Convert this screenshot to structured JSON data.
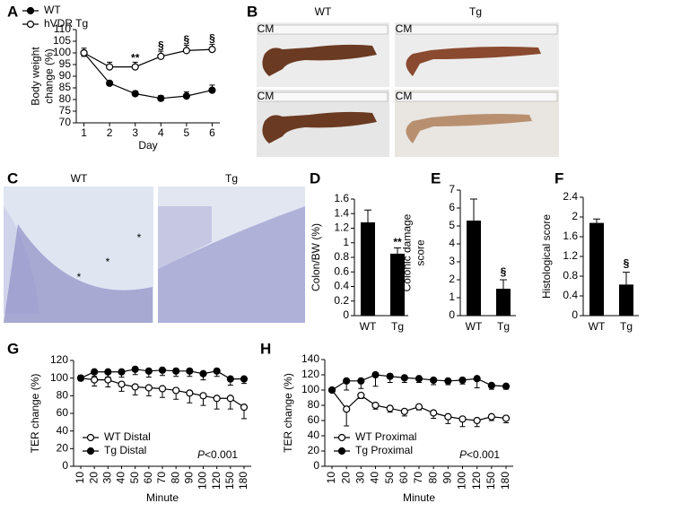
{
  "chart_data": [
    {
      "type": "line",
      "panel": "A",
      "x": [
        1,
        2,
        3,
        4,
        5,
        6
      ],
      "xlim": [
        0.7,
        6.3
      ],
      "xticks": [
        1,
        2,
        3,
        4,
        5,
        6
      ],
      "ylim": [
        70,
        110
      ],
      "yticks": [
        70,
        75,
        80,
        85,
        90,
        95,
        100,
        105,
        110
      ],
      "ylabel": [
        "Body weight",
        "change (%)"
      ],
      "xlabel": "Day",
      "legend": "upper left",
      "series": [
        {
          "name": "WT",
          "color": "#000000",
          "fill": "#000000",
          "values": [
            100,
            87,
            82.5,
            80.5,
            81.5,
            84
          ],
          "errors": [
            1.5,
            0.8,
            1.2,
            1.2,
            1.8,
            2.2
          ]
        },
        {
          "name": "hVDR Tg",
          "color": "#000000",
          "fill": "#ffffff",
          "values": [
            100,
            94,
            94,
            98.5,
            101,
            101.5
          ],
          "errors": [
            2,
            2,
            2,
            2.2,
            2.2,
            2.2
          ]
        }
      ],
      "annotations": [
        {
          "text": "**",
          "x": 3,
          "y": 97.5
        },
        {
          "text": "§",
          "x": 4,
          "y": 103
        },
        {
          "text": "§",
          "x": 5,
          "y": 105.5
        },
        {
          "text": "§",
          "x": 6,
          "y": 106
        }
      ]
    },
    {
      "type": "bar",
      "panel": "D",
      "categories": [
        "WT",
        "Tg"
      ],
      "values": [
        1.28,
        0.85
      ],
      "errors": [
        0.17,
        0.08
      ],
      "color": "#000000",
      "ylim": [
        0,
        1.6
      ],
      "yticks": [
        0,
        0.2,
        0.4,
        0.6,
        0.8,
        1,
        1.2,
        1.4,
        1.6
      ],
      "ylabel": [
        "Colon/BW (%)"
      ],
      "annotations": [
        {
          "text": "**",
          "category": "Tg",
          "y": 1
        }
      ]
    },
    {
      "type": "bar",
      "panel": "E",
      "categories": [
        "WT",
        "Tg"
      ],
      "values": [
        5.3,
        1.5
      ],
      "errors": [
        1.2,
        0.5
      ],
      "color": "#000000",
      "ylim": [
        0,
        7
      ],
      "yticks": [
        0,
        1,
        2,
        3,
        4,
        5,
        6,
        7
      ],
      "ylabel": [
        "Colonic damage",
        "score"
      ],
      "annotations": [
        {
          "text": "§",
          "category": "Tg",
          "y": 2.4
        }
      ]
    },
    {
      "type": "bar",
      "panel": "F",
      "categories": [
        "WT",
        "Tg"
      ],
      "values": [
        1.88,
        0.63
      ],
      "errors": [
        0.08,
        0.25
      ],
      "color": "#000000",
      "ylim": [
        0,
        2.4
      ],
      "yticks": [
        0,
        0.4,
        0.8,
        1.2,
        1.6,
        2,
        2.4
      ],
      "ylabel": [
        "Histological score"
      ],
      "annotations": [
        {
          "text": "§",
          "category": "Tg",
          "y": 1.05
        }
      ]
    },
    {
      "type": "line",
      "panel": "G",
      "categories": [
        10,
        20,
        30,
        40,
        50,
        60,
        70,
        80,
        90,
        100,
        120,
        150,
        180
      ],
      "ylim": [
        0,
        120
      ],
      "yticks": [
        0,
        20,
        40,
        60,
        80,
        100,
        120
      ],
      "ylabel": [
        "TER change (%)"
      ],
      "xlabel": "Minute",
      "legend": "lower left",
      "series": [
        {
          "name": "WT Distal",
          "color": "#000000",
          "fill": "#ffffff",
          "values": [
            100,
            98,
            98,
            93,
            90,
            89,
            88,
            86,
            83,
            80,
            77,
            77,
            67
          ],
          "errors": [
            3,
            7,
            8,
            8,
            9,
            9,
            10,
            10,
            11,
            11,
            12,
            12,
            13
          ]
        },
        {
          "name": "Tg Distal",
          "color": "#000000",
          "fill": "#000000",
          "values": [
            100,
            107,
            107,
            107,
            110,
            108,
            109,
            108,
            108,
            105,
            108,
            99,
            99
          ],
          "errors": [
            3,
            5,
            6,
            6,
            6,
            7,
            6,
            6,
            6,
            7,
            6,
            7,
            5
          ]
        }
      ],
      "note": {
        "italic": "P",
        "text": "<0.001"
      }
    },
    {
      "type": "line",
      "panel": "H",
      "categories": [
        10,
        20,
        30,
        40,
        50,
        60,
        70,
        80,
        90,
        100,
        120,
        150,
        180
      ],
      "ylim": [
        0,
        140
      ],
      "yticks": [
        0,
        20,
        40,
        60,
        80,
        100,
        120,
        140
      ],
      "ylabel": [
        "TER change (%)"
      ],
      "xlabel": "Minute",
      "legend": "lower left",
      "series": [
        {
          "name": "WT Proximal",
          "color": "#000000",
          "fill": "#ffffff",
          "values": [
            100,
            75,
            93,
            80,
            76,
            72,
            78,
            70,
            65,
            62,
            60,
            65,
            63
          ],
          "errors": [
            3,
            22,
            4,
            5,
            5,
            6,
            4,
            7,
            9,
            10,
            8,
            5,
            6
          ]
        },
        {
          "name": "Tg Proximal",
          "color": "#000000",
          "fill": "#000000",
          "values": [
            100,
            112,
            112,
            120,
            118,
            116,
            115,
            113,
            112,
            113,
            115,
            106,
            105
          ],
          "errors": [
            3,
            12,
            10,
            15,
            8,
            6,
            5,
            6,
            5,
            5,
            12,
            5,
            4
          ]
        }
      ],
      "note": {
        "italic": "P",
        "text": "<0.001"
      }
    }
  ],
  "photos": [
    {
      "panel": "B",
      "labels": [
        "WT",
        "Tg"
      ],
      "ruler_label": "CM"
    },
    {
      "panel": "C",
      "labels": [
        "WT",
        "Tg"
      ],
      "marks": [
        "*",
        "*",
        "*"
      ]
    }
  ]
}
